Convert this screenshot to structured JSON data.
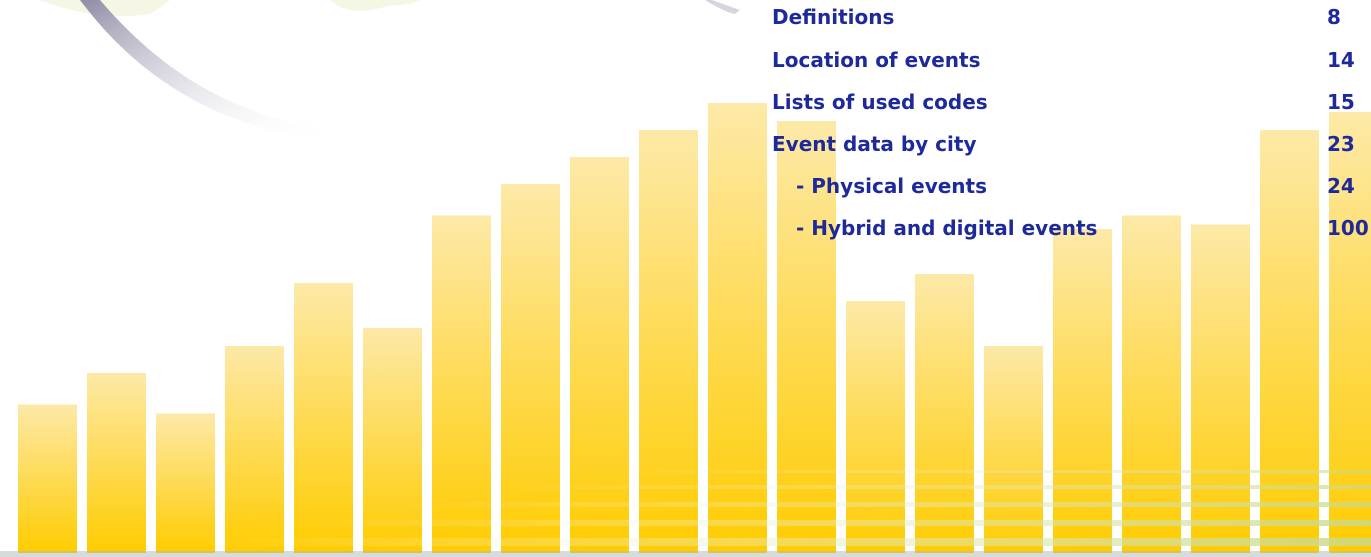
{
  "toc": {
    "entries": [
      {
        "label": "Definitions",
        "page": "8",
        "level": 1
      },
      {
        "label": "Location of events",
        "page": "14",
        "level": 1
      },
      {
        "label": "Lists of used codes",
        "page": "15",
        "level": 1
      },
      {
        "label": "Event data by city",
        "page": "23",
        "level": 1
      },
      {
        "label": "- Physical events",
        "page": "24",
        "level": 2
      },
      {
        "label": "- Hybrid and digital events",
        "page": "100",
        "level": 2
      }
    ]
  },
  "decoration": {
    "bar_levels": [
      0.33,
      0.4,
      0.31,
      0.46,
      0.6,
      0.5,
      0.75,
      0.82,
      0.88,
      0.94,
      1.0,
      0.96,
      0.56,
      0.62,
      0.46,
      0.72,
      0.75,
      0.73,
      0.94,
      0.98
    ],
    "colors": {
      "bar_top": "#fde9a8",
      "bar_bottom": "#ffcc00",
      "toc_text": "#1e2a9a",
      "swoosh": "#b8b6c6",
      "ground_stripe": "#c9d98a"
    }
  }
}
